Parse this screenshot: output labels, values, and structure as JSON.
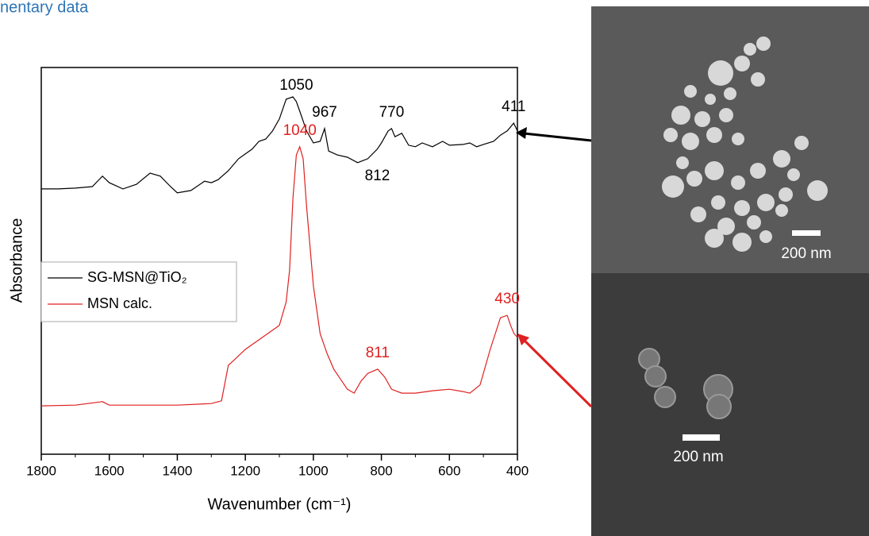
{
  "page_heading": "nentary data",
  "images": [
    {
      "scale_label": "200 nm"
    },
    {
      "scale_label": "200 nm"
    }
  ],
  "chart_data": {
    "type": "line",
    "xlabel": "Wavenumber (cm⁻¹)",
    "ylabel": "Absorbance",
    "xlim": [
      1800,
      400
    ],
    "xticks": [
      1800,
      1600,
      1400,
      1200,
      1000,
      800,
      600,
      400
    ],
    "ylim": [
      0,
      1
    ],
    "legend": "left",
    "series": [
      {
        "name": "SG-MSN@TiO₂",
        "color": "#000000",
        "x": [
          1800,
          1750,
          1700,
          1650,
          1620,
          1600,
          1560,
          1520,
          1480,
          1450,
          1420,
          1400,
          1360,
          1320,
          1300,
          1280,
          1250,
          1220,
          1180,
          1160,
          1140,
          1120,
          1100,
          1080,
          1060,
          1050,
          1040,
          1020,
          1000,
          980,
          967,
          955,
          930,
          900,
          870,
          840,
          812,
          800,
          780,
          770,
          760,
          740,
          720,
          700,
          680,
          650,
          620,
          600,
          560,
          540,
          520,
          500,
          470,
          450,
          430,
          411,
          400
        ],
        "values": [
          0.686,
          0.686,
          0.688,
          0.692,
          0.719,
          0.702,
          0.686,
          0.698,
          0.727,
          0.719,
          0.692,
          0.676,
          0.682,
          0.706,
          0.702,
          0.71,
          0.733,
          0.764,
          0.789,
          0.809,
          0.815,
          0.836,
          0.867,
          0.918,
          0.924,
          0.912,
          0.887,
          0.836,
          0.805,
          0.809,
          0.842,
          0.784,
          0.774,
          0.768,
          0.754,
          0.764,
          0.789,
          0.805,
          0.836,
          0.842,
          0.821,
          0.83,
          0.799,
          0.795,
          0.805,
          0.795,
          0.809,
          0.799,
          0.801,
          0.805,
          0.795,
          0.801,
          0.809,
          0.825,
          0.836,
          0.856,
          0.836
        ]
      },
      {
        "name": "MSN calc.",
        "color": "#e02020",
        "x": [
          1800,
          1700,
          1620,
          1600,
          1500,
          1400,
          1300,
          1270,
          1250,
          1230,
          1200,
          1150,
          1100,
          1080,
          1070,
          1060,
          1050,
          1040,
          1030,
          1020,
          1000,
          980,
          960,
          940,
          900,
          880,
          860,
          840,
          811,
          790,
          770,
          740,
          700,
          650,
          600,
          560,
          540,
          510,
          480,
          450,
          430,
          420,
          410,
          400
        ],
        "values": [
          0.125,
          0.127,
          0.136,
          0.127,
          0.127,
          0.127,
          0.131,
          0.138,
          0.23,
          0.246,
          0.271,
          0.302,
          0.333,
          0.394,
          0.476,
          0.661,
          0.774,
          0.795,
          0.764,
          0.641,
          0.435,
          0.312,
          0.261,
          0.22,
          0.168,
          0.158,
          0.189,
          0.209,
          0.22,
          0.199,
          0.168,
          0.158,
          0.158,
          0.164,
          0.168,
          0.162,
          0.158,
          0.179,
          0.271,
          0.353,
          0.359,
          0.333,
          0.312,
          0.302
        ]
      }
    ],
    "annotations": [
      {
        "x": 1050,
        "series": 0,
        "position": "above"
      },
      {
        "x": 967,
        "series": 0,
        "position": "above"
      },
      {
        "x": 770,
        "series": 0,
        "position": "above"
      },
      {
        "x": 411,
        "series": 0,
        "position": "above"
      },
      {
        "x": 812,
        "series": 0,
        "position": "below"
      },
      {
        "x": 1040,
        "series": 1,
        "position": "above"
      },
      {
        "x": 811,
        "series": 1,
        "position": "above"
      },
      {
        "x": 430,
        "series": 1,
        "position": "above"
      }
    ]
  }
}
